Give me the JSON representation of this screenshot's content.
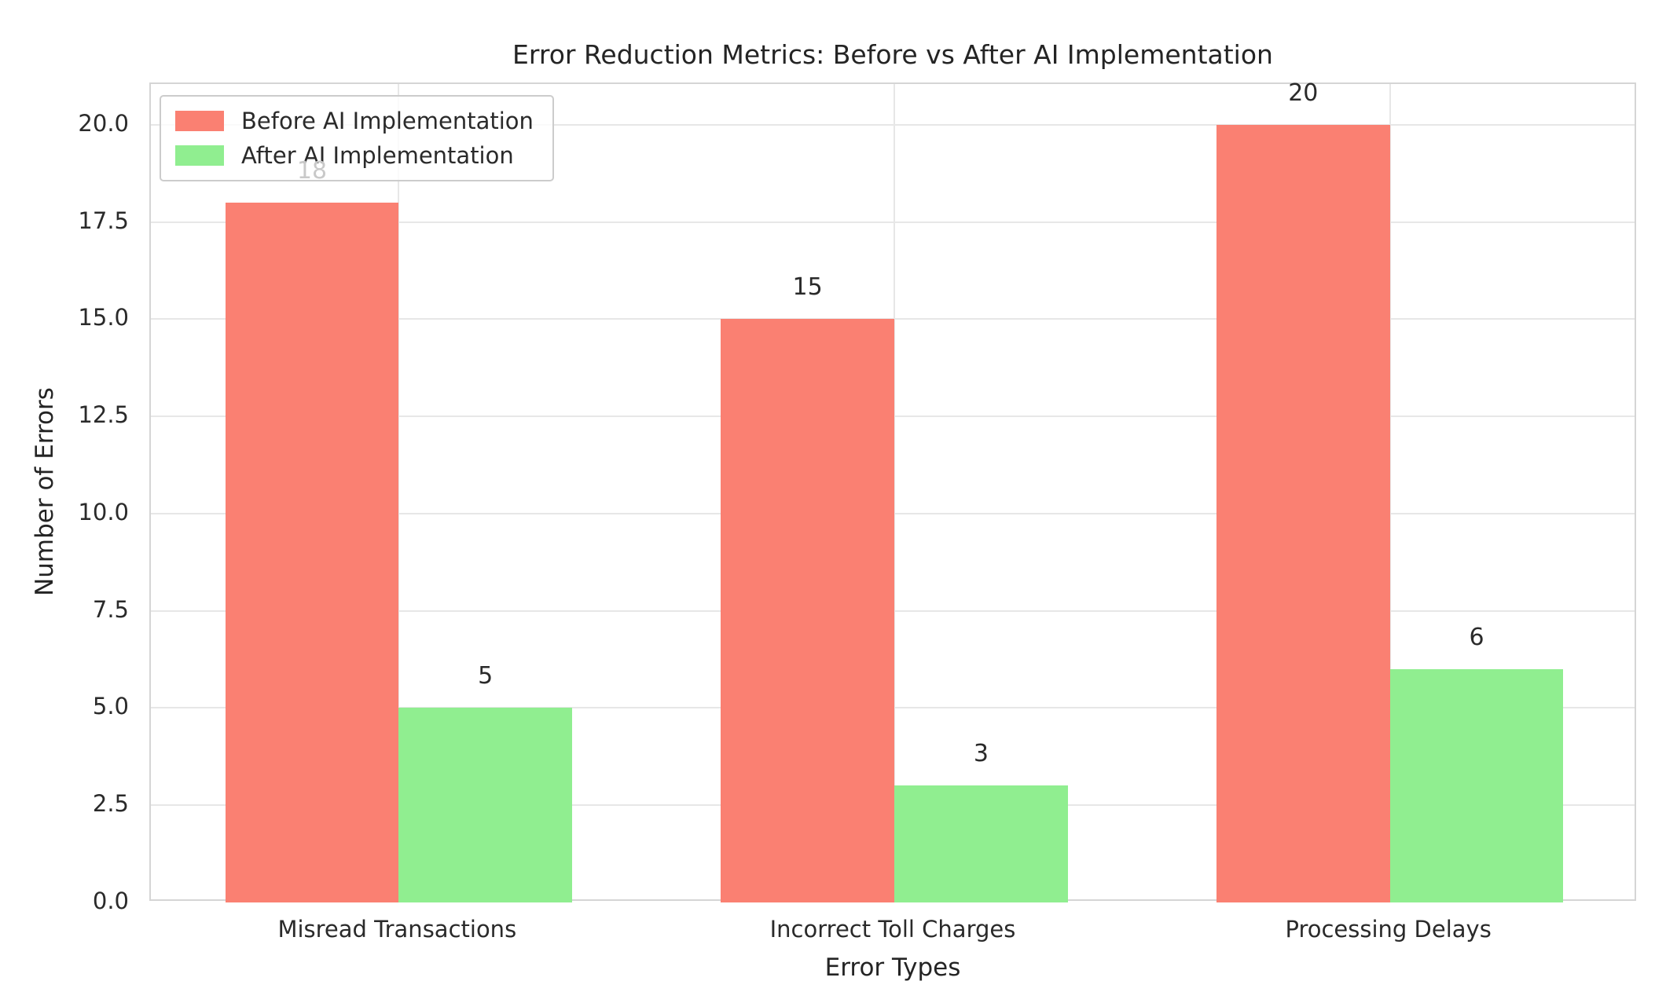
{
  "figure": {
    "background": "#ffffff"
  },
  "chart_data": {
    "type": "bar",
    "title": "Error Reduction Metrics: Before vs After AI Implementation",
    "xlabel": "Error Types",
    "ylabel": "Number of Errors",
    "categories": [
      "Misread Transactions",
      "Incorrect Toll Charges",
      "Processing Delays"
    ],
    "series": [
      {
        "name": "Before AI Implementation",
        "color": "#FA8072",
        "values": [
          18,
          15,
          20
        ]
      },
      {
        "name": "After AI Implementation",
        "color": "#90EE90",
        "values": [
          5,
          3,
          6
        ]
      }
    ],
    "bar_value_labels": [
      [
        "18",
        "15",
        "20"
      ],
      [
        "5",
        "3",
        "6"
      ]
    ],
    "y_tick_labels": [
      "0.0",
      "2.5",
      "5.0",
      "7.5",
      "10.0",
      "12.5",
      "15.0",
      "17.5",
      "20.0"
    ],
    "y_tick_values": [
      0,
      2.5,
      5,
      7.5,
      10,
      12.5,
      15,
      17.5,
      20
    ],
    "ylim": [
      0,
      21.05
    ],
    "bar_width_fraction": 0.35,
    "grid": true,
    "legend_position": "upper left",
    "colors": {
      "grid": "#e7e7e7",
      "frame": "#d5d5d5",
      "text": "#2a2a2a",
      "faint_label_through_legend": "#c9c9c9"
    },
    "notes": "value label 18 appears faint because it sits behind the semi-transparent legend box"
  }
}
